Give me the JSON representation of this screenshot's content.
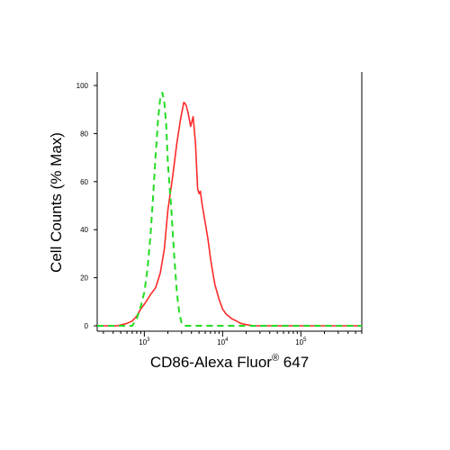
{
  "chart_data": {
    "type": "line",
    "xlabel": "CD86-Alexa Fluor",
    "xlabel_superscript": "®",
    "xlabel_suffix": " 647",
    "ylabel": "Cell Counts (% Max)",
    "x_scale": "log",
    "xlim": [
      250,
      600000
    ],
    "ylim": [
      0,
      100
    ],
    "y_ticks": [
      {
        "value": 0,
        "label": "0"
      },
      {
        "value": 20,
        "label": "20"
      },
      {
        "value": 40,
        "label": "40"
      },
      {
        "value": 60,
        "label": "60"
      },
      {
        "value": 80,
        "label": "80"
      },
      {
        "value": 100,
        "label": "100"
      }
    ],
    "x_ticks": [
      {
        "value": 1000,
        "base": "10",
        "exp": "3"
      },
      {
        "value": 10000,
        "base": "10",
        "exp": "4"
      },
      {
        "value": 100000,
        "base": "10",
        "exp": "5"
      }
    ],
    "grid": false,
    "legend": "none",
    "series": [
      {
        "style": "solid",
        "color": "#ff2a2a",
        "x": [
          250,
          450,
          600,
          700,
          800,
          900,
          1000,
          1200,
          1400,
          1600,
          1800,
          2000,
          2300,
          2600,
          2900,
          3200,
          3400,
          3600,
          3900,
          4200,
          4500,
          4800,
          5000,
          5200,
          5500,
          6000,
          6500,
          7000,
          7500,
          8000,
          9000,
          10000,
          11000,
          13000,
          15000,
          17000,
          20000,
          25000,
          600000
        ],
        "y": [
          0,
          0,
          1,
          2,
          4,
          7,
          9,
          13,
          16,
          22,
          32,
          48,
          62,
          76,
          86,
          93,
          92,
          89,
          83,
          87,
          76,
          57,
          55,
          56,
          50,
          43,
          36,
          28,
          22,
          17,
          11,
          7,
          5,
          3,
          2,
          1,
          0.5,
          0,
          0
        ]
      },
      {
        "style": "dashed",
        "color": "#22dd22",
        "x": [
          250,
          700,
          800,
          900,
          1000,
          1100,
          1200,
          1300,
          1400,
          1500,
          1600,
          1700,
          1800,
          1900,
          2000,
          2100,
          2200,
          2400,
          2600,
          2800,
          3000,
          3200,
          600000
        ],
        "y": [
          0,
          0,
          3,
          8,
          14,
          24,
          38,
          55,
          72,
          86,
          95,
          97,
          93,
          84,
          68,
          58,
          50,
          30,
          14,
          5,
          1,
          0,
          0
        ]
      }
    ]
  }
}
